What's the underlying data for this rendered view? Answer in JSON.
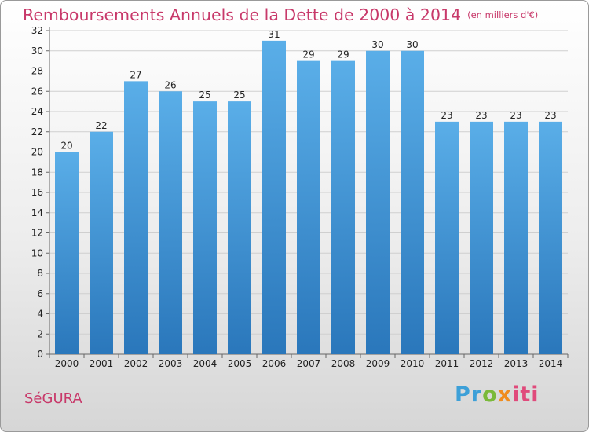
{
  "header": {
    "title": "Remboursements Annuels de la Dette de 2000 à 2014",
    "unit": "(en milliers d'€)"
  },
  "footer": {
    "commune": "SéGURA",
    "brand_parts": [
      "Pr",
      "o",
      "x",
      "iti"
    ]
  },
  "colors": {
    "title": "#c8396a",
    "bar_top": "#5aaee8",
    "bar_bottom": "#2a77bb",
    "grid": "#cfcfcf"
  },
  "chart_data": {
    "type": "bar",
    "title": "Remboursements Annuels de la Dette de 2000 à 2014",
    "categories": [
      "2000",
      "2001",
      "2002",
      "2003",
      "2004",
      "2005",
      "2006",
      "2007",
      "2008",
      "2009",
      "2010",
      "2011",
      "2012",
      "2013",
      "2014"
    ],
    "values": [
      20,
      22,
      27,
      26,
      25,
      25,
      31,
      29,
      29,
      30,
      30,
      23,
      23,
      23,
      23
    ],
    "ylim": [
      0,
      32
    ],
    "yticks": [
      0,
      2,
      4,
      6,
      8,
      10,
      12,
      14,
      16,
      18,
      20,
      22,
      24,
      26,
      28,
      30,
      32
    ],
    "grid": true,
    "data_labels": true
  }
}
